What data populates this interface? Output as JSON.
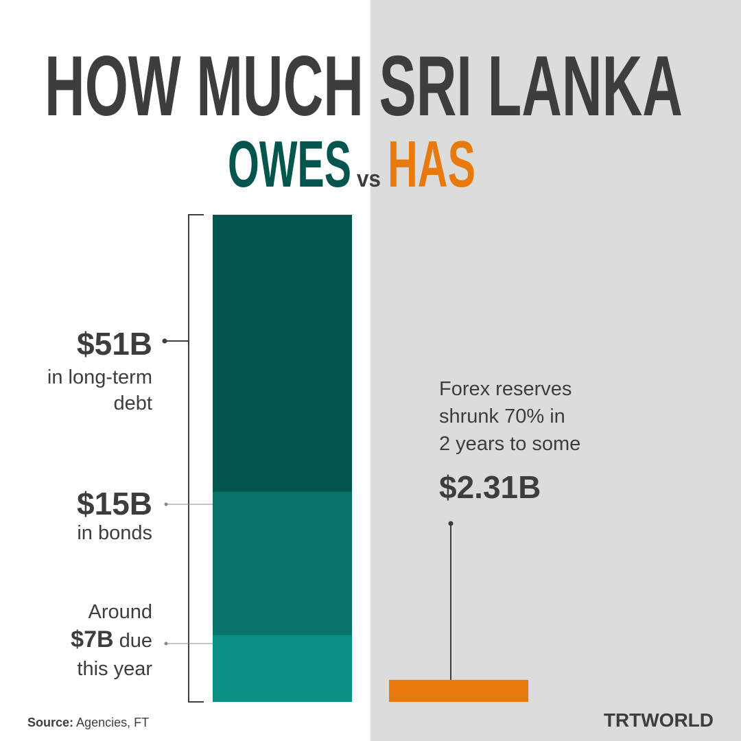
{
  "chart_data": {
    "type": "bar",
    "title": "HOW MUCH SRI LANKA",
    "subtitle": {
      "owes": "OWES",
      "vs": "vs",
      "has": "HAS",
      "owes_color": "#03564e",
      "has_color": "#e8790c"
    },
    "ylim": [
      0,
      51
    ],
    "owes": {
      "segments": [
        {
          "value": 51,
          "value_label": "$51B",
          "caption": [
            "in long-term",
            "debt"
          ],
          "color": "#03564e"
        },
        {
          "value": 15,
          "value_label": "$15B",
          "caption": [
            "in bonds"
          ],
          "color": "#08736a"
        },
        {
          "value": 7,
          "value_label": "$7B",
          "prefix": "Around",
          "caption": [
            "due",
            "this year"
          ],
          "color": "#0a8f85"
        }
      ]
    },
    "has": {
      "value": 2.31,
      "value_label": "$2.31B",
      "caption": [
        "Forex reserves",
        "shrunk 70% in",
        "2 years to some"
      ],
      "color": "#e8790c"
    },
    "source_label": "Source:",
    "source": "Agencies, FT",
    "brand": "TRTWORLD"
  }
}
